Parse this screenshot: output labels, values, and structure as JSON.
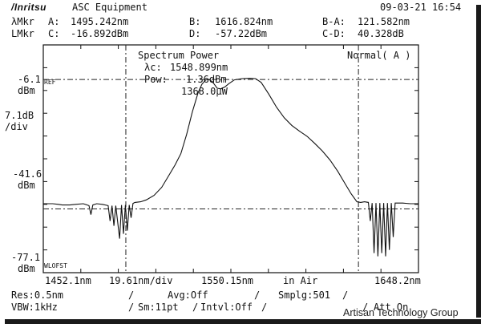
{
  "header": {
    "brand": "/Inritsu",
    "equipment": "ASC Equipment",
    "datetime": "09-03-21 16:54"
  },
  "markers": {
    "row1": {
      "label": "λMkr",
      "a_label": "A:",
      "a_value": "1495.242nm",
      "b_label": "B:",
      "b_value": "1616.824nm",
      "ba_label": "B-A:",
      "ba_value": "121.582nm"
    },
    "row2": {
      "label": "LMkr",
      "c_label": "C:",
      "c_value": "-16.892dBm",
      "d_label": "D:",
      "d_value": "-57.22dBm",
      "cd_label": "C-D:",
      "cd_value": "40.328dB"
    }
  },
  "yaxis": {
    "ref_value": "-6.1",
    "ref_unit": "dBm",
    "ref_tag": "REF",
    "scale_value": "7.1dB",
    "scale_unit": "/div",
    "mid_value": "-41.6",
    "mid_unit": "dBm",
    "bottom_value": "-77.1",
    "bottom_unit": "dBm",
    "bottom_tag": "WLOFST"
  },
  "xaxis": {
    "start": "1452.1nm",
    "per_div": "19.61nm/div",
    "center": "1550.15nm",
    "medium": "in Air",
    "stop": "1648.2nm"
  },
  "overlay": {
    "title": "Spectrum Power",
    "lc_label": "λc:",
    "lc_value": "1548.899nm",
    "pow_label": "Pow:",
    "pow_value": "1.36dBm",
    "uw_value": "1368.0μW",
    "mode": "Normal( A )"
  },
  "settings": {
    "res": "Res:0.5nm",
    "avg": "Avg:Off",
    "smplg": "Smplg:501",
    "vbw": "VBW:1kHz",
    "sm": "Sm:11pt",
    "intvl": "Intvl:Off",
    "att": "Att On"
  },
  "watermark": "Artisan Technology Group",
  "colors": {
    "trace": "#111111",
    "grid": "#222222",
    "background": "#ffffff"
  },
  "chart_data": {
    "type": "line",
    "xlim": [
      1452.1,
      1648.2
    ],
    "ylim": [
      -77.1,
      -6.1
    ],
    "x_units": "nm",
    "y_units": "dBm",
    "markers_nm": [
      1495.242,
      1616.824
    ],
    "level_markers_dBm": [
      -16.892,
      -57.22
    ],
    "series": [
      {
        "points": [
          [
            1452.1,
            -55.6
          ],
          [
            1457,
            -55.6
          ],
          [
            1460,
            -55.8
          ],
          [
            1462,
            -56.0
          ],
          [
            1466,
            -56.0
          ],
          [
            1469,
            -55.8
          ],
          [
            1473,
            -55.6
          ],
          [
            1476,
            -56.2
          ],
          [
            1477,
            -59.0
          ],
          [
            1478,
            -56.0
          ],
          [
            1480,
            -55.6
          ],
          [
            1483,
            -55.8
          ],
          [
            1486,
            -56.2
          ],
          [
            1487,
            -61.0
          ],
          [
            1488,
            -56.2
          ],
          [
            1489,
            -62.5
          ],
          [
            1490,
            -56.2
          ],
          [
            1492,
            -66.5
          ],
          [
            1493,
            -56.0
          ],
          [
            1494,
            -65.0
          ],
          [
            1495,
            -56.0
          ],
          [
            1496,
            -64.0
          ],
          [
            1497,
            -56.0
          ],
          [
            1498,
            -60.0
          ],
          [
            1499,
            -55.5
          ],
          [
            1500,
            -55.2
          ],
          [
            1503,
            -55.0
          ],
          [
            1506,
            -54.4
          ],
          [
            1510,
            -53.0
          ],
          [
            1514,
            -50.5
          ],
          [
            1518,
            -46.5
          ],
          [
            1521,
            -43.5
          ],
          [
            1524,
            -40.0
          ],
          [
            1527,
            -34.0
          ],
          [
            1530,
            -27.0
          ],
          [
            1533,
            -21.0
          ],
          [
            1535,
            -18.4
          ],
          [
            1537,
            -17.0
          ],
          [
            1539,
            -16.9
          ],
          [
            1541,
            -18.0
          ],
          [
            1543,
            -19.6
          ],
          [
            1545,
            -19.8
          ],
          [
            1547,
            -19.2
          ],
          [
            1549,
            -18.2
          ],
          [
            1552,
            -17.0
          ],
          [
            1556,
            -16.6
          ],
          [
            1560,
            -16.5
          ],
          [
            1563,
            -16.6
          ],
          [
            1566,
            -17.8
          ],
          [
            1570,
            -21.5
          ],
          [
            1574,
            -25.5
          ],
          [
            1578,
            -28.8
          ],
          [
            1582,
            -31.2
          ],
          [
            1586,
            -33.0
          ],
          [
            1590,
            -34.6
          ],
          [
            1594,
            -36.8
          ],
          [
            1598,
            -39.2
          ],
          [
            1602,
            -42.0
          ],
          [
            1606,
            -45.5
          ],
          [
            1610,
            -49.5
          ],
          [
            1613,
            -52.5
          ],
          [
            1616,
            -55.0
          ],
          [
            1618,
            -55.2
          ],
          [
            1620,
            -55.0
          ],
          [
            1622,
            -55.2
          ],
          [
            1623,
            -61.0
          ],
          [
            1624,
            -55.4
          ],
          [
            1625,
            -71.0
          ],
          [
            1626,
            -55.4
          ],
          [
            1627,
            -72.0
          ],
          [
            1628,
            -55.4
          ],
          [
            1629,
            -71.0
          ],
          [
            1630,
            -55.4
          ],
          [
            1631,
            -72.0
          ],
          [
            1632,
            -55.4
          ],
          [
            1633,
            -70.0
          ],
          [
            1634,
            -55.4
          ],
          [
            1635,
            -66.0
          ],
          [
            1636,
            -55.4
          ],
          [
            1640,
            -55.4
          ],
          [
            1644,
            -55.6
          ],
          [
            1648.2,
            -55.6
          ]
        ]
      }
    ]
  }
}
